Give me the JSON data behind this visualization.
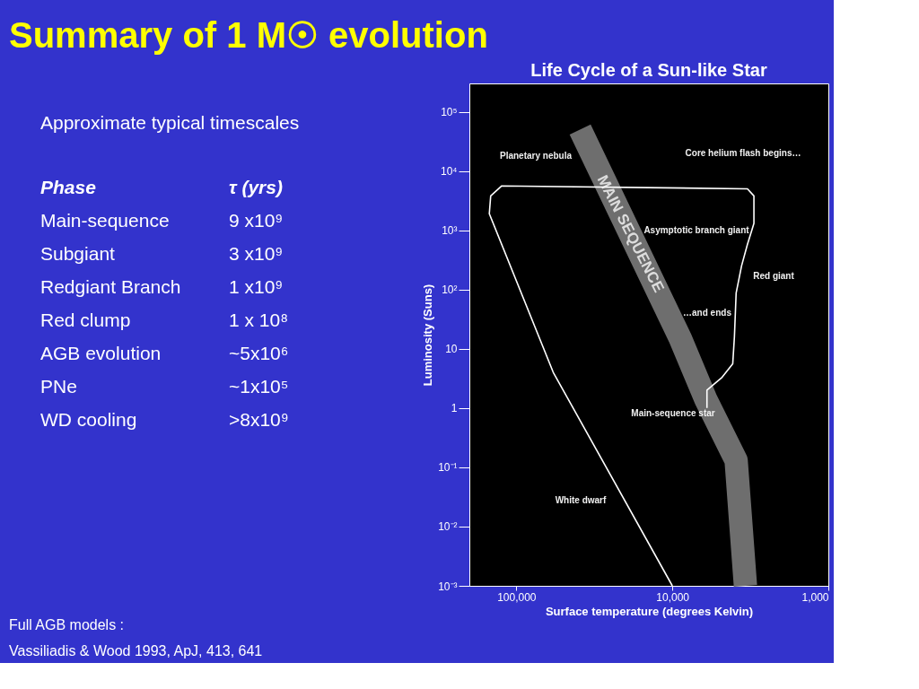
{
  "chart_data": {
    "type": "line",
    "title": "Summary of 1 M☉ evolution",
    "subtitle": "Life Cycle of a Sun-like Star",
    "xlabel": "Surface temperature (degrees Kelvin)",
    "ylabel": "Luminosity (Suns)",
    "log": "xy",
    "xlim": [
      200000,
      1000
    ],
    "ylim": [
      0.001,
      300000
    ],
    "xticks": [
      {
        "value": 100000,
        "label": "100,000"
      },
      {
        "value": 10000,
        "label": "10,000"
      },
      {
        "value": 1000,
        "label": "1,000"
      }
    ],
    "yticks": [
      {
        "value": 100000,
        "label": "10⁵"
      },
      {
        "value": 10000,
        "label": "10⁴"
      },
      {
        "value": 1000,
        "label": "10³"
      },
      {
        "value": 100,
        "label": "10²"
      },
      10,
      1,
      {
        "value": 0.1,
        "label": "10⁻¹"
      },
      {
        "value": 0.01,
        "label": "10⁻²"
      },
      {
        "value": 0.001,
        "label": "10⁻³"
      }
    ],
    "grid": false,
    "legend": false,
    "marker": "none",
    "line_style": "solid",
    "series": [
      {
        "name": "MAIN SEQUENCE",
        "color": "#6e6e6e",
        "x": [
          39000,
          8900,
          6100,
          3900,
          3400
        ],
        "values": [
          50000,
          15,
          1.4,
          0.13,
          0.001
        ]
      },
      {
        "color": "#ffffff",
        "x": [
          6000,
          6000,
          4800,
          4100,
          4000,
          3900,
          3600,
          3300,
          3000,
          3000,
          3300,
          124000,
          146000,
          149000,
          58000,
          10000
        ],
        "values": [
          1,
          2,
          3.3,
          5.6,
          16,
          87,
          250,
          580,
          1300,
          3800,
          5000,
          5600,
          3800,
          1900,
          4,
          0.001
        ]
      }
    ],
    "annotations": [
      "Approximate typical timescales",
      "Phase",
      "τ (yrs)",
      "Main-sequence",
      "9 x10⁹",
      "Subgiant",
      "3 x10⁹",
      "Redgiant Branch",
      "1 x10⁹",
      "Red clump",
      "1 x 10⁸",
      "AGB evolution",
      "~5x10⁶",
      "PNe",
      "~1x10⁵",
      "WD cooling",
      ">8x10⁹",
      "Full AGB models :",
      "Vassiliadis & Wood 1993, ApJ, 413, 641",
      "Planetary nebula",
      "Core helium flash begins…",
      "Asymptotic branch giant",
      "Red giant",
      "…and ends",
      "Main-sequence star",
      "White dwarf"
    ]
  }
}
